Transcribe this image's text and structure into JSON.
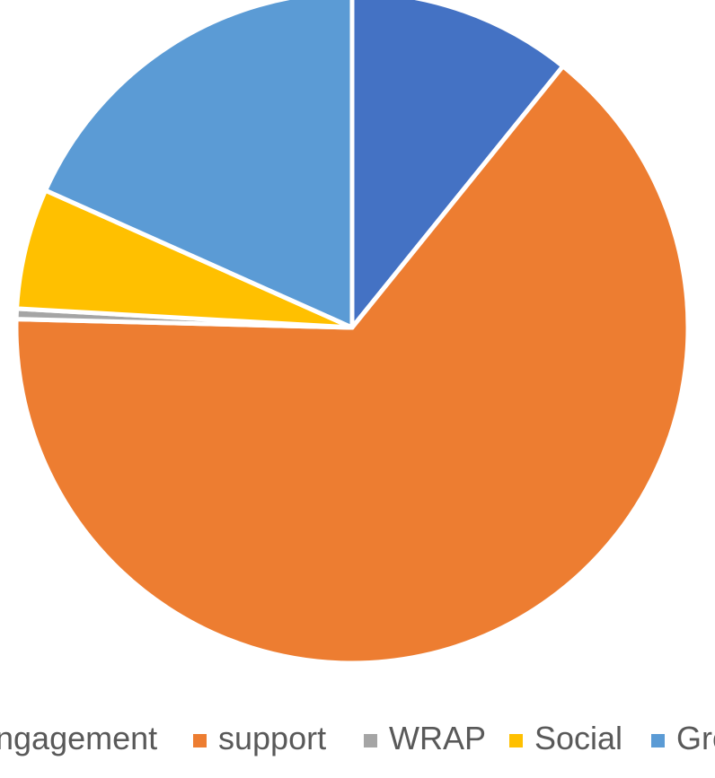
{
  "chart_data": {
    "type": "pie",
    "title": "",
    "slices": [
      {
        "label": "Engagement",
        "legend_text": "ngagement",
        "value": 10.8,
        "color": "#4472C4"
      },
      {
        "label": "support",
        "legend_text": "support",
        "value": 64.6,
        "color": "#ED7D31"
      },
      {
        "label": "WRAP",
        "legend_text": "WRAP",
        "value": 0.5,
        "color": "#A5A5A5"
      },
      {
        "label": "Social",
        "legend_text": "Social",
        "value": 5.8,
        "color": "#FFC000"
      },
      {
        "label": "Group",
        "legend_text": "Gro",
        "value": 18.3,
        "color": "#5B9BD5"
      }
    ],
    "legend_placement": "bottom"
  }
}
